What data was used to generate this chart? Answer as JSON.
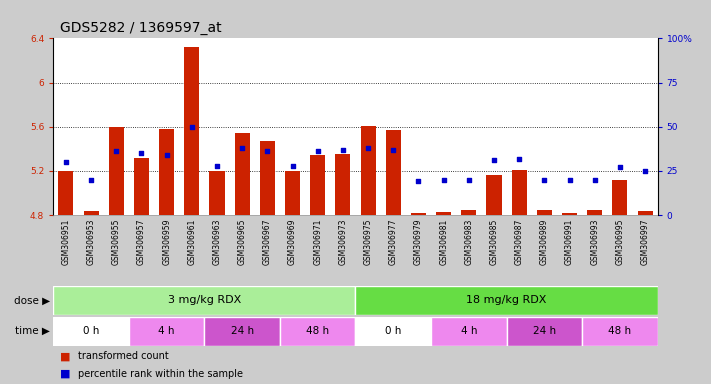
{
  "title": "GDS5282 / 1369597_at",
  "samples": [
    "GSM306951",
    "GSM306953",
    "GSM306955",
    "GSM306957",
    "GSM306959",
    "GSM306961",
    "GSM306963",
    "GSM306965",
    "GSM306967",
    "GSM306969",
    "GSM306971",
    "GSM306973",
    "GSM306975",
    "GSM306977",
    "GSM306979",
    "GSM306981",
    "GSM306983",
    "GSM306985",
    "GSM306987",
    "GSM306989",
    "GSM306991",
    "GSM306993",
    "GSM306995",
    "GSM306997"
  ],
  "bar_values": [
    5.2,
    4.84,
    5.6,
    5.32,
    5.58,
    6.32,
    5.2,
    5.54,
    5.47,
    5.2,
    5.34,
    5.35,
    5.61,
    5.57,
    4.82,
    4.83,
    4.85,
    5.16,
    5.21,
    4.85,
    4.82,
    4.85,
    5.12,
    4.84
  ],
  "percentile_values": [
    30,
    20,
    36,
    35,
    34,
    50,
    28,
    38,
    36,
    28,
    36,
    37,
    38,
    37,
    19,
    20,
    20,
    31,
    32,
    20,
    20,
    20,
    27,
    25
  ],
  "bar_bottom": 4.8,
  "ylim_left": [
    4.8,
    6.4
  ],
  "ylim_right": [
    0,
    100
  ],
  "yticks_left": [
    4.8,
    5.2,
    5.6,
    6.0,
    6.4
  ],
  "yticks_right": [
    0,
    25,
    50,
    75,
    100
  ],
  "ytick_labels_left": [
    "4.8",
    "5.2",
    "5.6",
    "6",
    "6.4"
  ],
  "ytick_labels_right": [
    "0",
    "25",
    "50",
    "75",
    "100%"
  ],
  "hlines": [
    5.2,
    5.6,
    6.0
  ],
  "bar_color": "#cc2200",
  "dot_color": "#0000cc",
  "dose_groups": [
    {
      "label": "3 mg/kg RDX",
      "start": 0,
      "end": 12,
      "color": "#aaee99"
    },
    {
      "label": "18 mg/kg RDX",
      "start": 12,
      "end": 24,
      "color": "#66dd44"
    }
  ],
  "time_groups": [
    {
      "label": "0 h",
      "start": 0,
      "end": 3,
      "color": "#ffffff"
    },
    {
      "label": "4 h",
      "start": 3,
      "end": 6,
      "color": "#ee88ee"
    },
    {
      "label": "24 h",
      "start": 6,
      "end": 9,
      "color": "#cc55cc"
    },
    {
      "label": "48 h",
      "start": 9,
      "end": 12,
      "color": "#ee88ee"
    },
    {
      "label": "0 h",
      "start": 12,
      "end": 15,
      "color": "#ffffff"
    },
    {
      "label": "4 h",
      "start": 15,
      "end": 18,
      "color": "#ee88ee"
    },
    {
      "label": "24 h",
      "start": 18,
      "end": 21,
      "color": "#cc55cc"
    },
    {
      "label": "48 h",
      "start": 21,
      "end": 24,
      "color": "#ee88ee"
    }
  ],
  "legend_bar_label": "transformed count",
  "legend_dot_label": "percentile rank within the sample",
  "dose_row_label": "dose",
  "time_row_label": "time",
  "bg_color": "#cccccc",
  "plot_bg_color": "#ffffff",
  "sample_bg_color": "#dddddd",
  "title_fontsize": 10,
  "tick_fontsize": 6.5,
  "label_fontsize": 8
}
